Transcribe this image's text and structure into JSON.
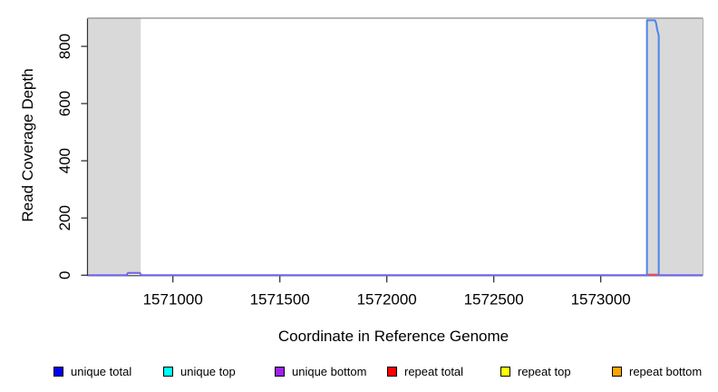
{
  "chart_data": {
    "type": "line",
    "xlabel": "Coordinate in Reference Genome",
    "ylabel": "Read Coverage Depth",
    "xlim": [
      1570603,
      1573476
    ],
    "ylim": [
      0,
      897
    ],
    "x_ticks": [
      1571000,
      1571500,
      1572000,
      1572500,
      1573000
    ],
    "y_ticks": [
      0,
      200,
      400,
      600,
      800
    ],
    "grid": false,
    "legend_position": "bottom",
    "plot_background": "#ffffff",
    "shaded_regions": [
      {
        "name": "shaded-region-left",
        "x0": 1570603,
        "x1": 1570850,
        "color": "#d9d9d9"
      },
      {
        "name": "shaded-region-right",
        "x0": 1573213,
        "x1": 1573476,
        "color": "#d9d9d9"
      }
    ],
    "series": [
      {
        "name": "coverage-baseline",
        "color": "#7163ea",
        "width": 2,
        "points": [
          [
            1570603,
            0
          ],
          [
            1570783,
            0
          ],
          [
            1570790,
            8
          ],
          [
            1570846,
            8
          ],
          [
            1570852,
            0
          ],
          [
            1573476,
            0
          ]
        ]
      },
      {
        "name": "repeat-total-segment",
        "color": "#e94f4f",
        "width": 2,
        "points": [
          [
            1573213,
            2
          ],
          [
            1573272,
            2
          ]
        ]
      },
      {
        "name": "unique-coverage-spike",
        "color": "#4a86ec",
        "width": 2,
        "points": [
          [
            1573216,
            0
          ],
          [
            1573216,
            891
          ],
          [
            1573254,
            891
          ],
          [
            1573259,
            880
          ],
          [
            1573264,
            858
          ],
          [
            1573271,
            838
          ],
          [
            1573271,
            0
          ]
        ]
      }
    ],
    "legend": [
      {
        "label": "unique total",
        "color": "#0000ff"
      },
      {
        "label": "unique top",
        "color": "#00ffff"
      },
      {
        "label": "unique bottom",
        "color": "#a020f0"
      },
      {
        "label": "repeat total",
        "color": "#ff0000"
      },
      {
        "label": "repeat top",
        "color": "#ffff00"
      },
      {
        "label": "repeat bottom",
        "color": "#ffa500"
      }
    ]
  }
}
